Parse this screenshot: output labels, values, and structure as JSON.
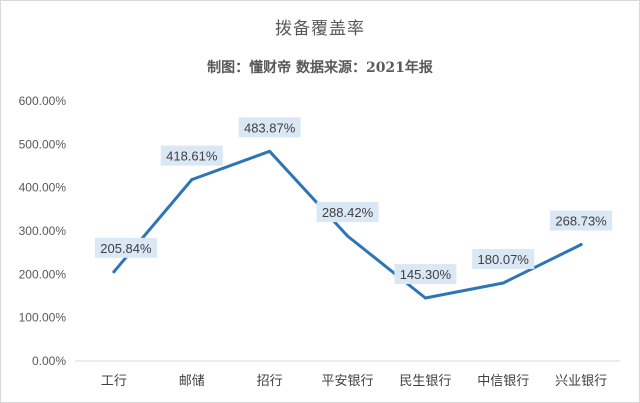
{
  "chart_data": {
    "type": "line",
    "title": "拨备覆盖率",
    "subtitle": "制图：懂财帝    数据来源：2021年报",
    "categories": [
      "工行",
      "邮储",
      "招行",
      "平安银行",
      "民生银行",
      "中信银行",
      "兴业银行"
    ],
    "values": [
      205.84,
      418.61,
      483.87,
      288.42,
      145.3,
      180.07,
      268.73
    ],
    "data_labels": [
      "205.84%",
      "418.61%",
      "483.87%",
      "288.42%",
      "145.30%",
      "180.07%",
      "268.73%"
    ],
    "yticks": [
      "0.00%",
      "100.00%",
      "200.00%",
      "300.00%",
      "400.00%",
      "500.00%",
      "600.00%"
    ],
    "ylim": [
      0,
      600
    ],
    "grid": false,
    "legend": "none",
    "colors": {
      "line": "#2e75b6",
      "label_bg": "#dae7f5",
      "text": "#595959"
    }
  }
}
